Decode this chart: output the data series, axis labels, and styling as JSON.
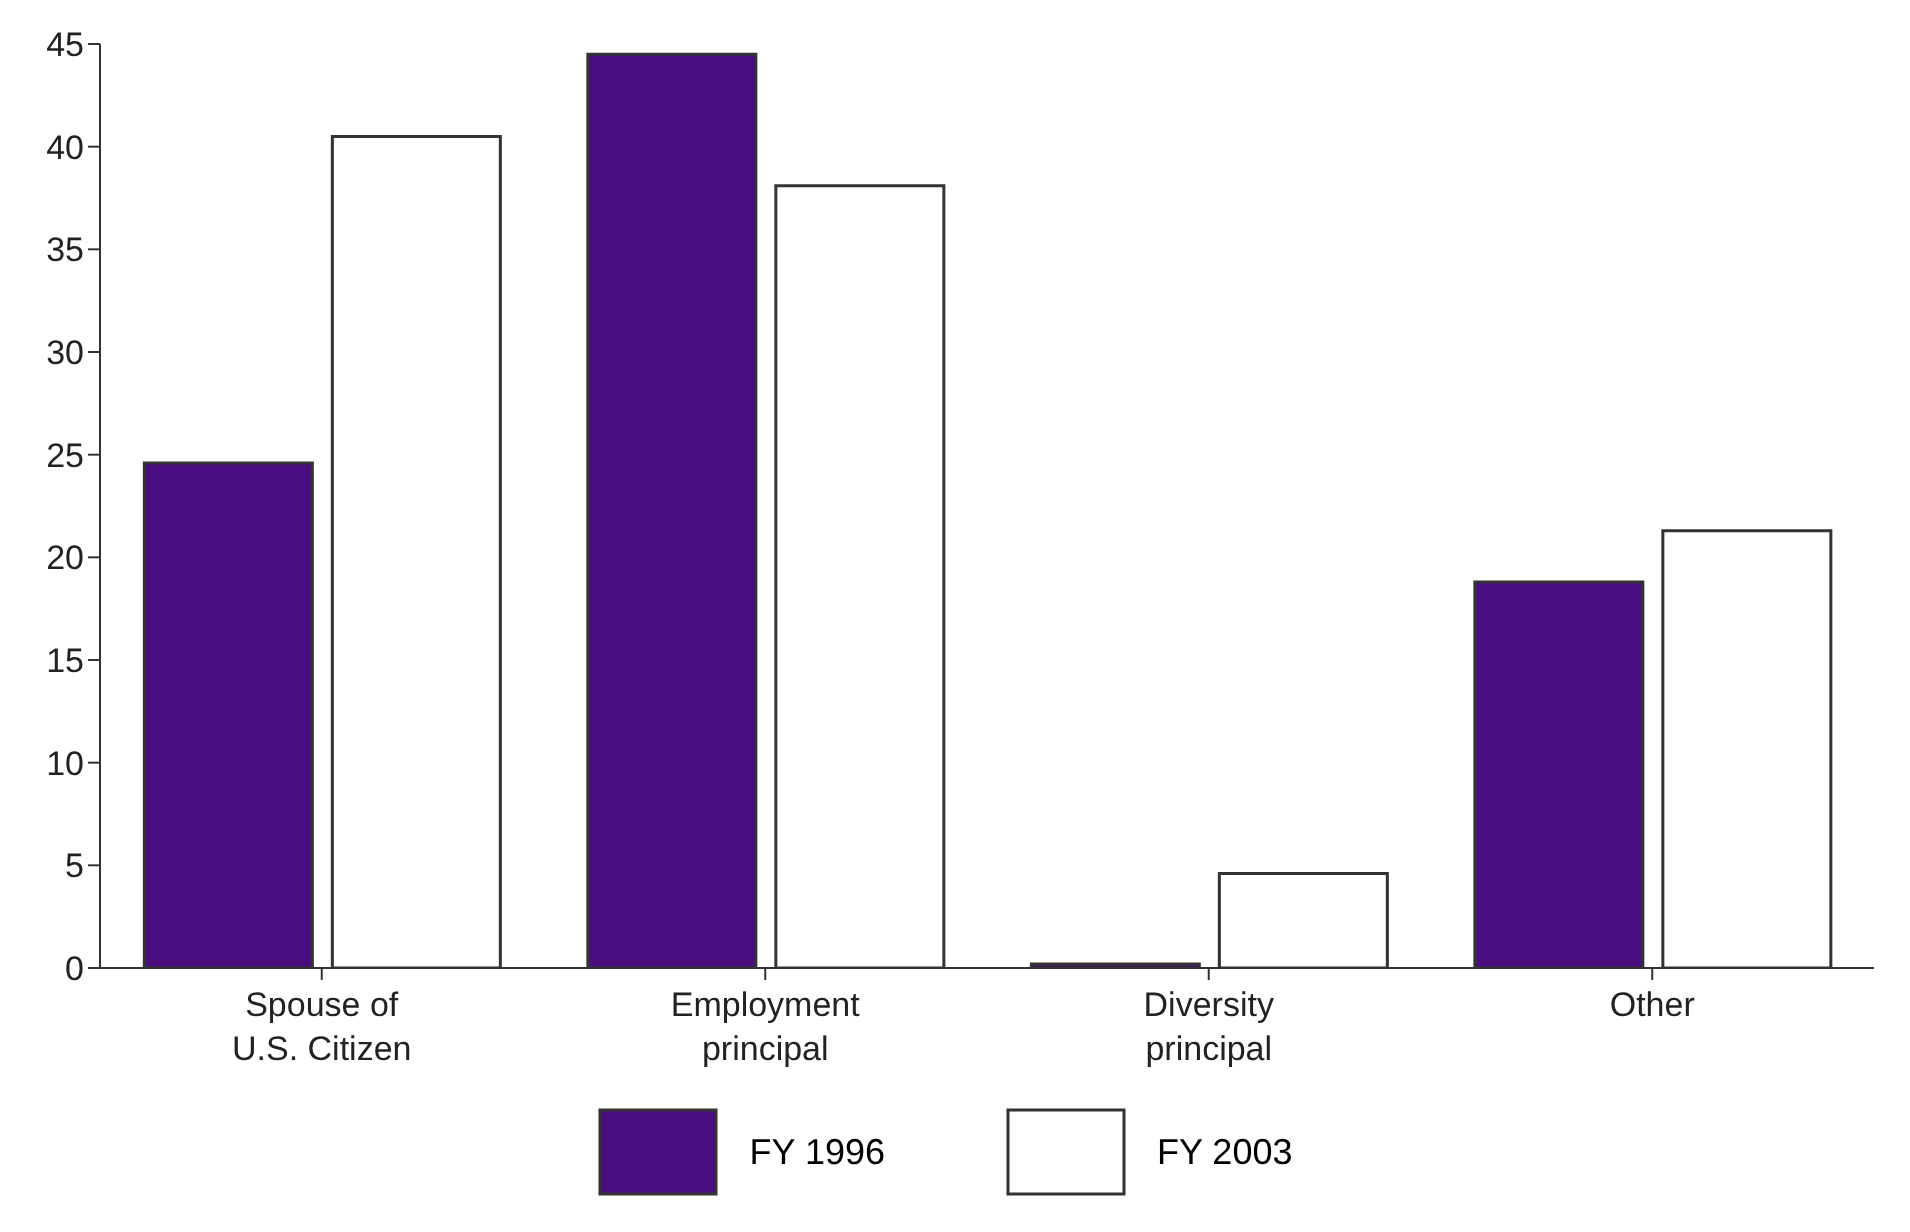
{
  "chart_data": {
    "type": "bar",
    "categories": [
      "Spouse of\nU.S. Citizen",
      "Employment\nprincipal",
      "Diversity\nprincipal",
      "Other"
    ],
    "series": [
      {
        "name": "FY 1996",
        "color": "#4a0d80",
        "values": [
          24.6,
          44.5,
          0.2,
          18.8
        ]
      },
      {
        "name": "FY 2003",
        "color": "#ffffff",
        "values": [
          40.5,
          38.1,
          4.6,
          21.3
        ]
      }
    ],
    "ylim": [
      0,
      45
    ],
    "yticks": [
      0,
      5,
      10,
      15,
      20,
      25,
      30,
      35,
      40,
      45
    ],
    "grid": false,
    "legend": "bottom"
  }
}
